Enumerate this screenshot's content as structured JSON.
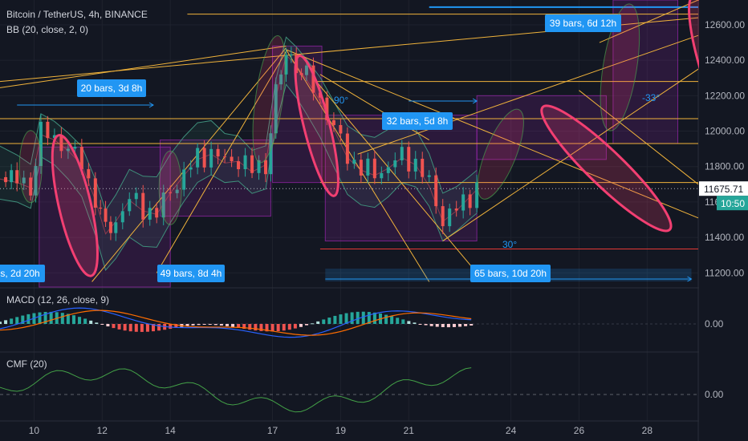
{
  "header": {
    "symbol_line": "Bitcoin / TetherUS, 4h, BINANCE",
    "bb_line": "BB (20, close, 2, 0)",
    "macd_line": "MACD (12, 26, close, 9)",
    "cmf_line": "CMF (20)"
  },
  "colors": {
    "background": "#131722",
    "bull": "#26a69a",
    "bear": "#ef5350",
    "highlight": "#f23f72",
    "drawing_line": "#f0b33b",
    "box": "#9c27b0",
    "measure": "#2196f3",
    "support_red": "#e53935",
    "bb_band": "#2e6b5b"
  },
  "price_axis": {
    "ticks": [
      "12600.00",
      "12400.00",
      "12200.00",
      "12000.00",
      "11800.00",
      "11600.00",
      "11400.00",
      "11200.00"
    ],
    "last_price": "11675.71",
    "countdown": "10:50"
  },
  "macd_axis": {
    "tick": "0.00"
  },
  "cmf_axis": {
    "tick": "0.00"
  },
  "time_axis": {
    "labels": [
      "10",
      "12",
      "14",
      "17",
      "19",
      "21",
      "24",
      "26",
      "28"
    ]
  },
  "measures": {
    "m_20_bars": "20 bars, 3d 8h",
    "m_49_bars": "49 bars, 8d 4h",
    "m_32_bars": "32 bars, 5d 8h",
    "m_39_bars": "39 bars, 6d 12h",
    "m_65_bars": "65 bars, 10d 20h",
    "m_partial": "s, 2d 20h"
  },
  "angles": {
    "a_90": "90°",
    "a_30": "30°",
    "a_neg33": "-33°"
  },
  "chart_data": {
    "type": "candlestick",
    "title": "Bitcoin / TetherUS, 4h, BINANCE",
    "indicators": [
      "BB (20, close, 2, 0)",
      "MACD (12, 26, close, 9)",
      "CMF (20)"
    ],
    "y_range": [
      11120,
      12740
    ],
    "x_range_days": [
      9,
      29.5
    ],
    "last_price": 11675.71,
    "horizontal_levels": [
      12700,
      12660,
      12280,
      12070,
      11930,
      11710,
      11335
    ],
    "close_path": [
      {
        "d": 9.0,
        "c": 11740
      },
      {
        "d": 9.5,
        "c": 11720
      },
      {
        "d": 9.9,
        "c": 11690
      },
      {
        "d": 10.2,
        "c": 11990
      },
      {
        "d": 10.6,
        "c": 11960
      },
      {
        "d": 11.0,
        "c": 11900
      },
      {
        "d": 11.4,
        "c": 11820
      },
      {
        "d": 11.8,
        "c": 11620
      },
      {
        "d": 12.1,
        "c": 11430
      },
      {
        "d": 12.4,
        "c": 11500
      },
      {
        "d": 12.8,
        "c": 11620
      },
      {
        "d": 13.2,
        "c": 11560
      },
      {
        "d": 13.6,
        "c": 11540
      },
      {
        "d": 14.0,
        "c": 11660
      },
      {
        "d": 14.4,
        "c": 11760
      },
      {
        "d": 14.8,
        "c": 11850
      },
      {
        "d": 15.2,
        "c": 11880
      },
      {
        "d": 15.6,
        "c": 11830
      },
      {
        "d": 16.0,
        "c": 11840
      },
      {
        "d": 16.4,
        "c": 11780
      },
      {
        "d": 16.8,
        "c": 11820
      },
      {
        "d": 17.1,
        "c": 12200
      },
      {
        "d": 17.4,
        "c": 12440
      },
      {
        "d": 17.7,
        "c": 12380
      },
      {
        "d": 18.0,
        "c": 12300
      },
      {
        "d": 18.4,
        "c": 12180
      },
      {
        "d": 18.8,
        "c": 12020
      },
      {
        "d": 19.2,
        "c": 11860
      },
      {
        "d": 19.6,
        "c": 11790
      },
      {
        "d": 20.0,
        "c": 11760
      },
      {
        "d": 20.4,
        "c": 11800
      },
      {
        "d": 20.8,
        "c": 11860
      },
      {
        "d": 21.2,
        "c": 11820
      },
      {
        "d": 21.6,
        "c": 11700
      },
      {
        "d": 22.0,
        "c": 11500
      },
      {
        "d": 22.4,
        "c": 11560
      },
      {
        "d": 22.8,
        "c": 11640
      },
      {
        "d": 23.0,
        "c": 11680
      }
    ],
    "macd": {
      "zero": 0,
      "hist_dates_start": 9.0,
      "hist_dates_end": 23.0
    },
    "cmf": {
      "zero": 0
    }
  }
}
